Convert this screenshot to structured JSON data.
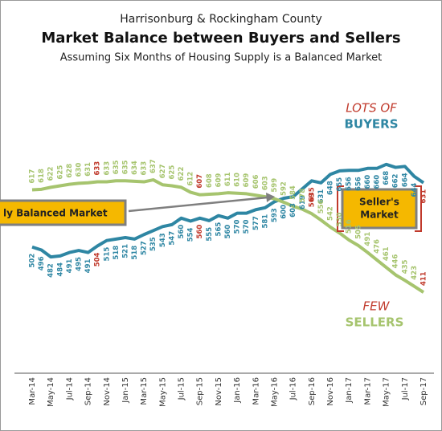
{
  "chart_data": {
    "type": "line",
    "supertitle": "Harrisonburg & Rockingham County",
    "title": "Market Balance between Buyers and Sellers",
    "subtitle": "Assuming Six Months of Housing Supply is a Balanced Market",
    "categories": [
      "Mar-14",
      null,
      "May-14",
      null,
      "Jul-14",
      null,
      "Sep-14",
      null,
      "Nov-14",
      null,
      "Jan-15",
      null,
      "Mar-15",
      null,
      "May-15",
      null,
      "Jul-15",
      null,
      "Sep-15",
      null,
      "Nov-15",
      null,
      "Jan-16",
      null,
      "Mar-16",
      null,
      "May-16",
      null,
      "Jul-16",
      null,
      "Sep-16",
      null,
      "Nov-16",
      null,
      "Jan-17",
      null,
      "Mar-17",
      null,
      "May-17",
      null,
      "Jul-17",
      null,
      "Sep-17"
    ],
    "series": [
      {
        "name": "BUYERS",
        "color": "#2e86a3",
        "values": [
          502,
          496,
          482,
          484,
          491,
          495,
          491,
          504,
          515,
          518,
          521,
          518,
          527,
          535,
          543,
          547,
          560,
          554,
          560,
          555,
          565,
          560,
          570,
          570,
          577,
          581,
          593,
          600,
          603,
          619,
          635,
          631,
          648,
          655,
          656,
          656,
          660,
          660,
          668,
          662,
          664,
          644,
          631
        ]
      },
      {
        "name": "SELLERS",
        "color": "#a6c46e",
        "values": [
          617,
          618,
          622,
          625,
          628,
          630,
          631,
          633,
          633,
          635,
          635,
          634,
          633,
          637,
          627,
          625,
          622,
          612,
          607,
          608,
          609,
          611,
          610,
          609,
          606,
          603,
          599,
          592,
          584,
          578,
          569,
          556,
          542,
          530,
          516,
          505,
          491,
          476,
          461,
          446,
          435,
          423,
          411
        ]
      }
    ],
    "highlight_points": [
      7,
      18,
      30,
      42
    ],
    "highlight_color": "#c0392b",
    "ylim": [
      250,
      700
    ],
    "annotations": {
      "buyers_top": "LOTS OF",
      "buyers": "BUYERS",
      "sellers_top": "FEW",
      "sellers": "SELLERS",
      "balanced": "ly Balanced Market",
      "sellers_market_1": "Seller's",
      "sellers_market_2": "Market"
    }
  }
}
